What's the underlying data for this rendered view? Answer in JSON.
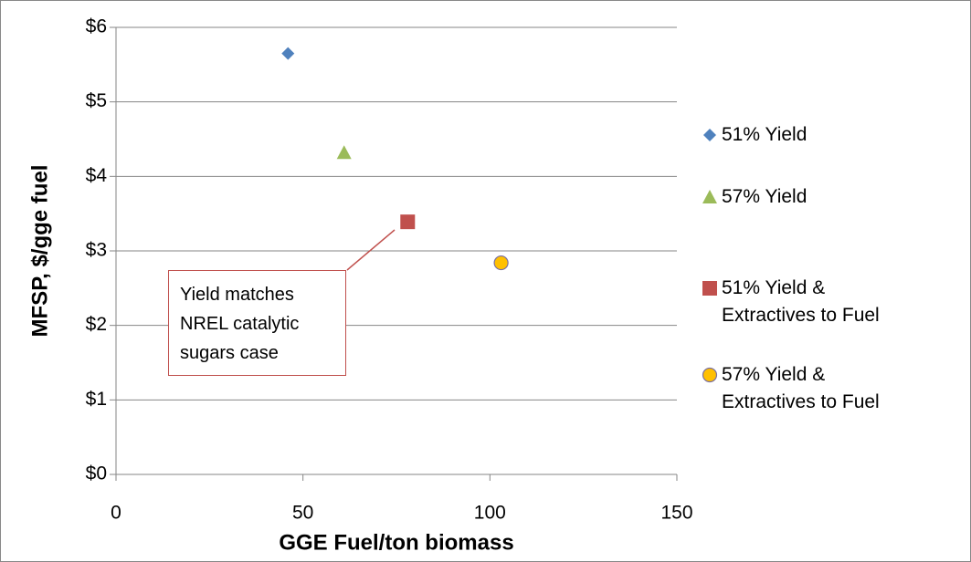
{
  "chart_data": {
    "type": "scatter",
    "x_label": "GGE Fuel/ton biomass",
    "y_label": "MFSP, $/gge fuel",
    "annotation": "Yield matches NREL catalytic sugars case",
    "xlim": [
      0,
      150
    ],
    "xticks": [
      0,
      50,
      100,
      150
    ],
    "ylim": [
      0,
      6
    ],
    "yticks": [
      {
        "value": 0,
        "label": "$0"
      },
      {
        "value": 1,
        "label": "$1"
      },
      {
        "value": 2,
        "label": "$2"
      },
      {
        "value": 3,
        "label": "$3"
      },
      {
        "value": 4,
        "label": "$4"
      },
      {
        "value": 5,
        "label": "$5"
      },
      {
        "value": 6,
        "label": "$6"
      }
    ],
    "grid": true,
    "legend": "right",
    "series": [
      {
        "name": "51% Yield",
        "color": "#4f81bd",
        "marker": "diamond",
        "x": [
          46
        ],
        "values": [
          5.65
        ]
      },
      {
        "name": "57% Yield",
        "color": "#9bbb59",
        "marker": "triangle",
        "x": [
          61
        ],
        "values": [
          4.32
        ]
      },
      {
        "name": "51% Yield & Extractives to Fuel",
        "color": "#c0504d",
        "marker": "square",
        "x": [
          78
        ],
        "values": [
          3.39
        ]
      },
      {
        "name": "57% Yield & Extractives to Fuel",
        "color": "#ffc000",
        "marker": "circle",
        "x": [
          103
        ],
        "values": [
          2.84
        ]
      }
    ]
  }
}
